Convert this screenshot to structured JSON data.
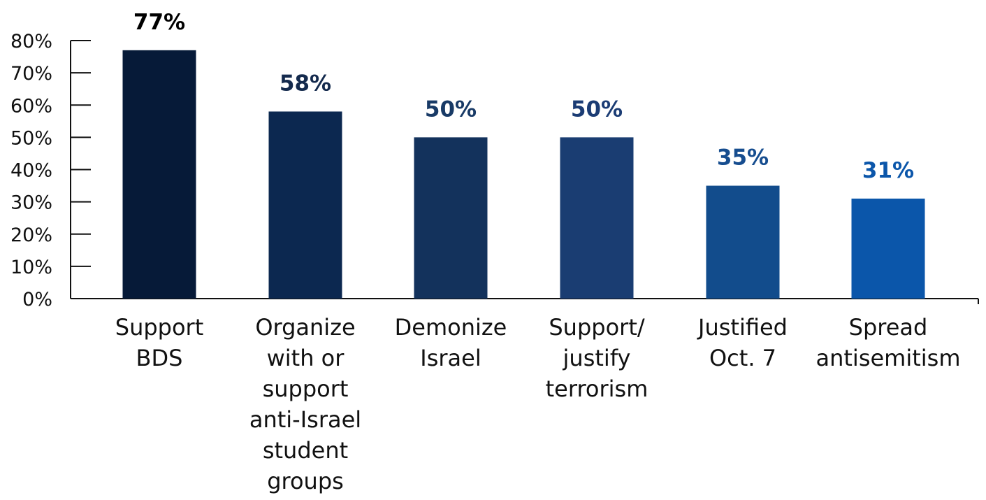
{
  "chart_data": {
    "type": "bar",
    "categories": [
      [
        "Support",
        "BDS"
      ],
      [
        "Organize",
        "with or",
        "support",
        "anti-Israel",
        "student",
        "groups"
      ],
      [
        "Demonize",
        "Israel"
      ],
      [
        "Support/",
        "justify",
        "terrorism"
      ],
      [
        "Justified",
        "Oct. 7"
      ],
      [
        "Spread",
        "antisemitism"
      ]
    ],
    "values": [
      77,
      58,
      50,
      50,
      35,
      31
    ],
    "value_labels": [
      "77%",
      "58%",
      "50%",
      "50%",
      "35%",
      "31%"
    ],
    "bar_colors": [
      "#061a38",
      "#0c2850",
      "#13325c",
      "#1a3d72",
      "#124c8c",
      "#0b56aa"
    ],
    "value_label_colors": [
      "#000000",
      "#142a4d",
      "#183a66",
      "#1b3c74",
      "#164d8f",
      "#0b56aa"
    ],
    "ylim": [
      0,
      80
    ],
    "yticks": [
      0,
      10,
      20,
      30,
      40,
      50,
      60,
      70,
      80
    ],
    "ytick_labels": [
      "0%",
      "10%",
      "20%",
      "30%",
      "40%",
      "50%",
      "60%",
      "70%",
      "80%"
    ],
    "title": "",
    "xlabel": "",
    "ylabel": "",
    "grid": false,
    "axis_color": "#111111"
  }
}
